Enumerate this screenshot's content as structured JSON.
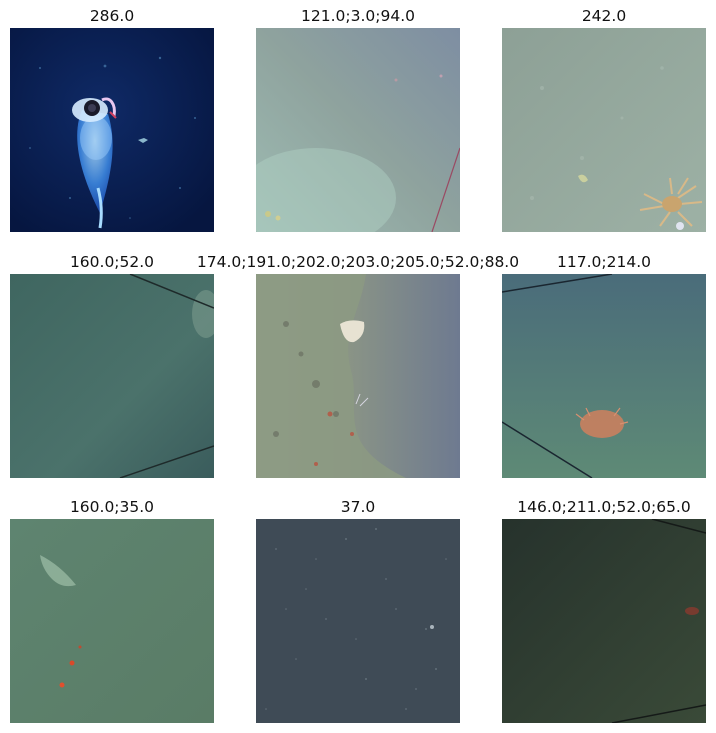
{
  "grid": {
    "tiles": [
      {
        "title": "286.0",
        "scene": "squid-dark-water"
      },
      {
        "title": "121.0;3.0;94.0",
        "scene": "grey-green-seafloor"
      },
      {
        "title": "242.0",
        "scene": "seafloor-with-crab"
      },
      {
        "title": "160.0;52.0",
        "scene": "teal-water-with-lines"
      },
      {
        "title": "174.0;191.0;202.0;203.0;205.0;52.0;88.0",
        "scene": "rocky-wall-with-sponge"
      },
      {
        "title": "117.0;214.0",
        "scene": "teal-water-orange-creature"
      },
      {
        "title": "160.0;35.0",
        "scene": "green-water-red-dots"
      },
      {
        "title": "37.0",
        "scene": "dark-speckled-seafloor"
      },
      {
        "title": "146.0;211.0;52.0;65.0",
        "scene": "dark-green-water"
      }
    ]
  },
  "colors": {
    "deep_navy": "#0a1f4a",
    "seafloor_grey": "#8a9a98",
    "teal": "#4f7471",
    "green_water": "#5f8068",
    "dark_green": "#2c3a30"
  }
}
